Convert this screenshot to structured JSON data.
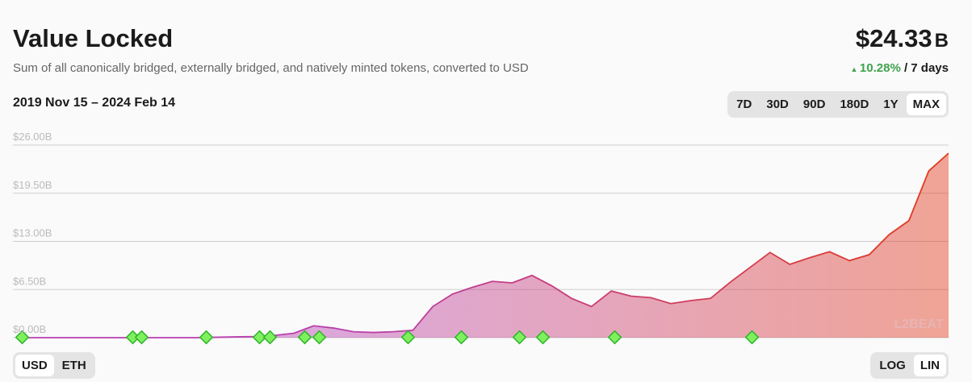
{
  "header": {
    "title": "Value Locked",
    "subtitle": "Sum of all canonically bridged, externally bridged, and natively minted tokens, converted to USD",
    "value": "$24.33",
    "value_unit": "B",
    "change": "10.28%",
    "period": "/ 7 days"
  },
  "range_label": "2019 Nov 15 – 2024 Feb 14",
  "time_buttons": [
    "7D",
    "30D",
    "90D",
    "180D",
    "1Y",
    "MAX"
  ],
  "selected_time": "MAX",
  "currency_buttons": [
    "USD",
    "ETH"
  ],
  "selected_currency": "USD",
  "scale_buttons": [
    "LOG",
    "LIN"
  ],
  "selected_scale": "LIN",
  "chart_data": {
    "type": "area",
    "watermark": "L2BEAT",
    "gradient": [
      "#b83fae",
      "#e33b1c"
    ],
    "grid": true,
    "values": [
      0,
      0,
      0,
      0,
      0,
      0,
      0,
      0,
      0,
      0,
      0.05,
      0.1,
      0.15,
      0.3,
      0.6,
      1.6,
      1.3,
      0.8,
      0.7,
      0.8,
      1.0,
      4.2,
      5.9,
      6.8,
      7.6,
      7.4,
      8.4,
      7.0,
      5.3,
      4.2,
      6.3,
      5.6,
      5.4,
      4.6,
      5.0,
      5.3,
      7.5,
      9.5,
      11.5,
      9.9,
      10.8,
      11.6,
      10.4,
      11.2,
      13.9,
      15.8,
      22.5,
      24.9
    ],
    "ylim": [
      0,
      26
    ],
    "yticks": [
      {
        "value": 0,
        "label": "$0.00B"
      },
      {
        "value": 6.5,
        "label": "$6.50B"
      },
      {
        "value": 13,
        "label": "$13.00B"
      },
      {
        "value": 19.5,
        "label": "$19.50B"
      },
      {
        "value": 26,
        "label": "$26.00B"
      }
    ]
  }
}
